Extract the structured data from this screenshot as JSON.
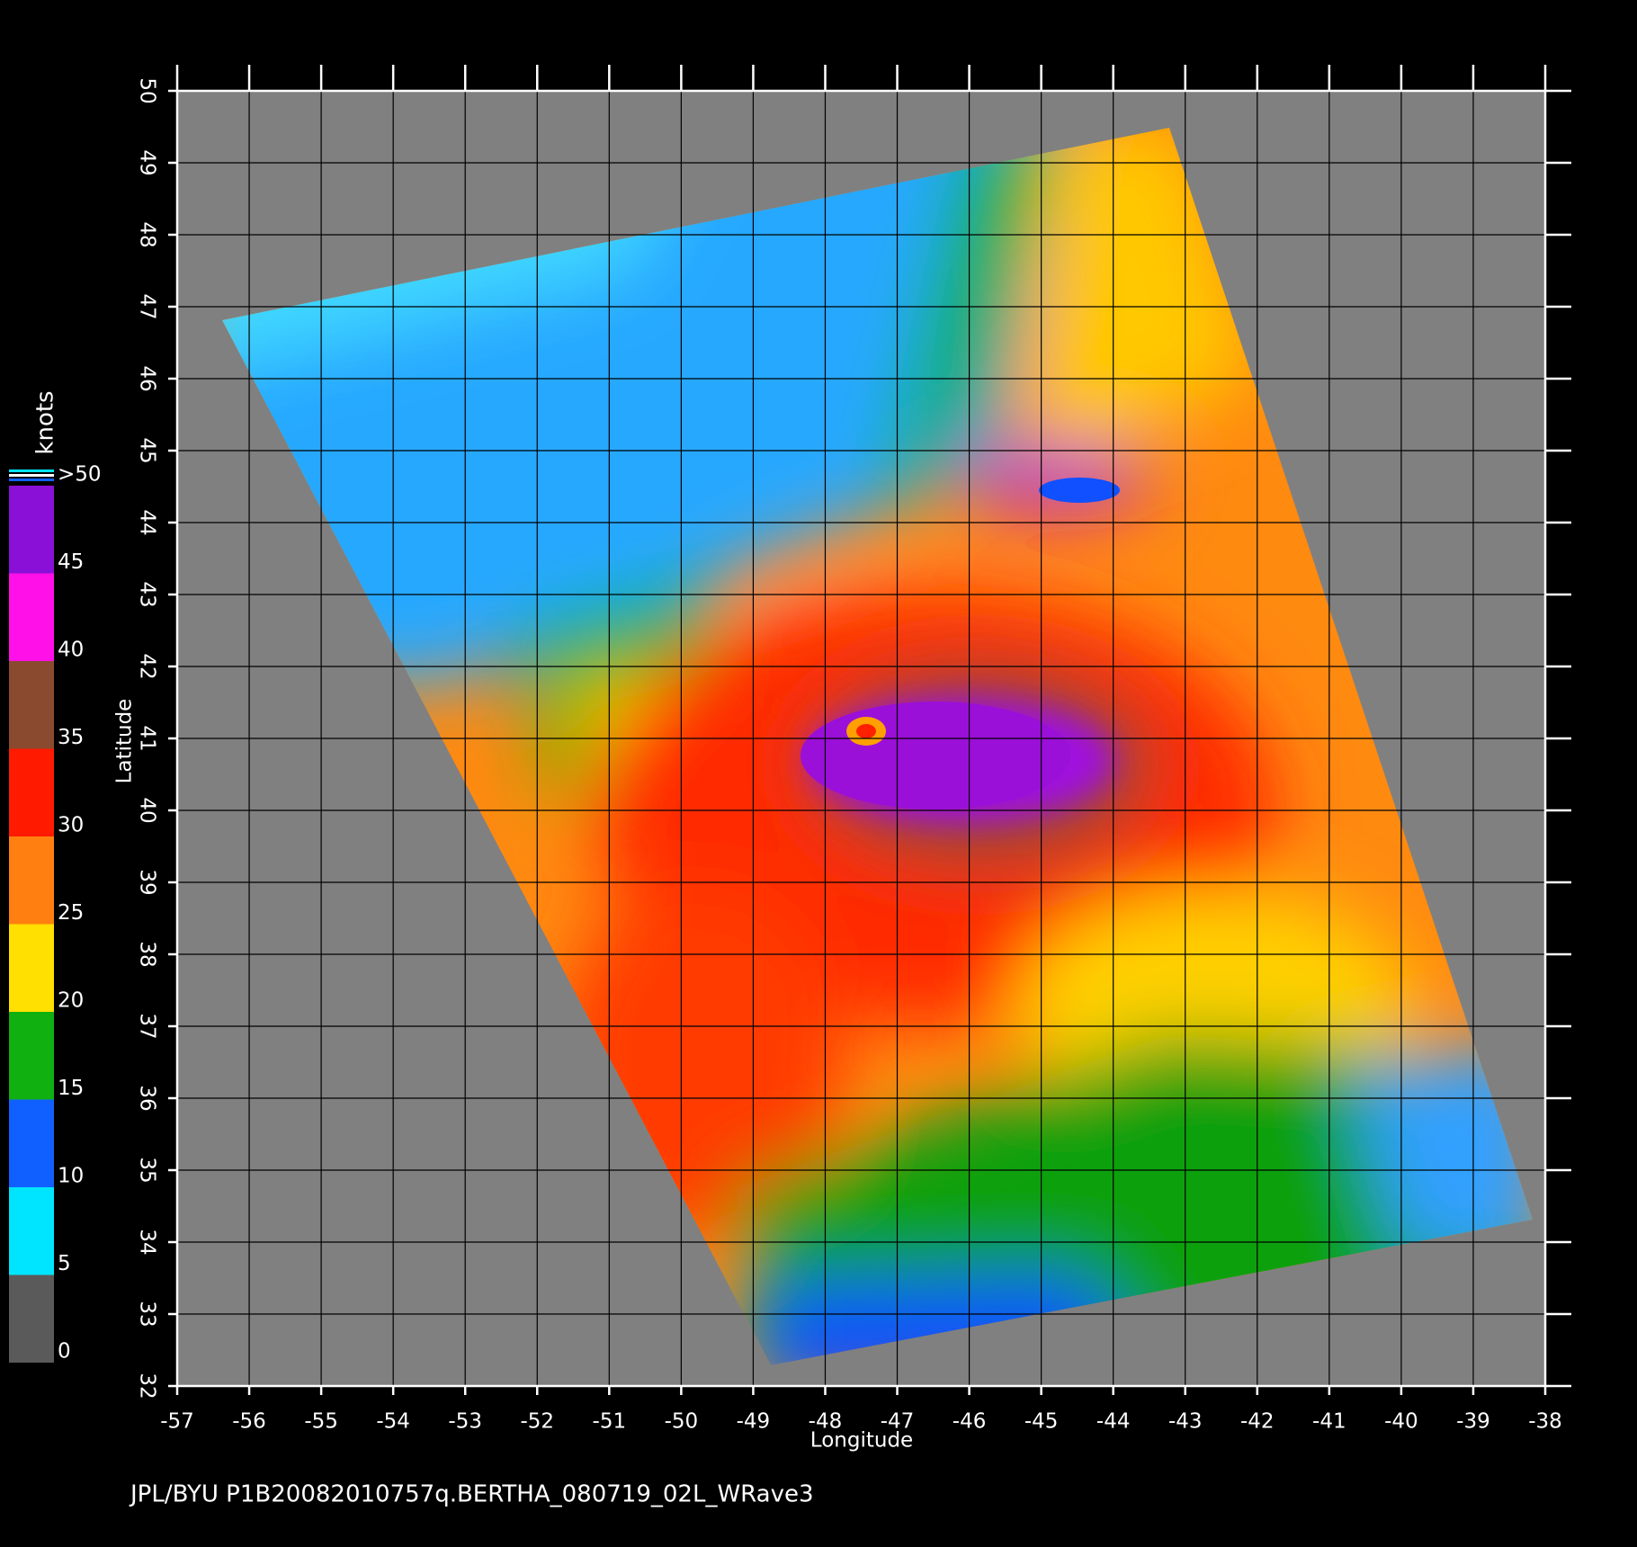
{
  "chart_data": {
    "type": "map",
    "title": "JPL/BYU  P1B20082010757q.BERTHA_080719_02L_WRave3",
    "xlabel": "Longitude",
    "ylabel": "Latitude",
    "xlim": [
      -57,
      -38
    ],
    "xticks": [
      -57,
      -56,
      -55,
      -54,
      -53,
      -52,
      -51,
      -50,
      -49,
      -48,
      -47,
      -46,
      -45,
      -44,
      -43,
      -42,
      -41,
      -40,
      -39,
      -38
    ],
    "ylim": [
      32,
      50
    ],
    "yticks": [
      32,
      33,
      34,
      35,
      36,
      37,
      38,
      39,
      40,
      41,
      42,
      43,
      44,
      45,
      46,
      47,
      48,
      49,
      50
    ],
    "grid": true,
    "colorbar": {
      "label": "knots",
      "lim": [
        0,
        50
      ],
      "ticks": [
        0,
        5,
        10,
        15,
        20,
        25,
        30,
        35,
        40,
        45,
        {
          "value": 50,
          "label": ">50"
        }
      ],
      "colors": [
        "#5a5a5a",
        "#00e5ff",
        "#1060ff",
        "#10b010",
        "#ffe000",
        "#ff8010",
        "#ff1a00",
        "#8a4a30",
        "#ff10e8",
        "#8a10d8"
      ]
    }
  }
}
